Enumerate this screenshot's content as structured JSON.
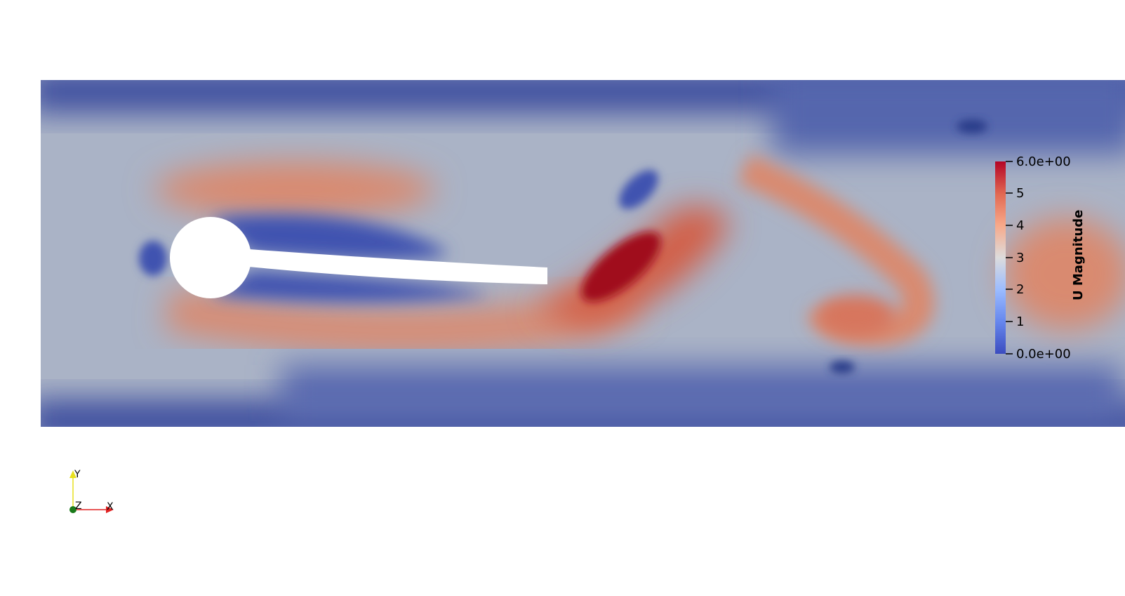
{
  "scalar_bar": {
    "title": "U Magnitude",
    "max_label": "6.0e+00",
    "min_label": "0.0e+00",
    "tick_labels": [
      "5",
      "4",
      "3",
      "2",
      "1"
    ],
    "range": [
      0,
      6
    ],
    "colors": [
      "#3b4cc0",
      "#6788ee",
      "#9abbff",
      "#c9d7f0",
      "#edd1c2",
      "#f7a889",
      "#e26952",
      "#b40426"
    ]
  },
  "orientation_axes": {
    "x_label": "X",
    "y_label": "Y",
    "z_label": "Z",
    "x_color": "#e02020",
    "y_color": "#e8e020",
    "z_color": "#1a7a1a"
  },
  "field": {
    "background_color": "#ffffff",
    "low_color": "#33449a",
    "mid_color": "#b8c0cc",
    "high_color": "#d9694f",
    "peak_color": "#a00d1e"
  }
}
